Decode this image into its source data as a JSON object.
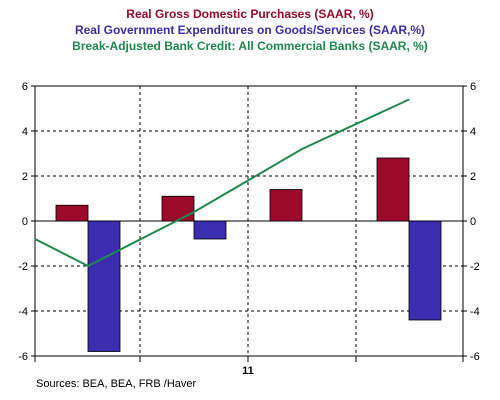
{
  "chart_data": {
    "type": "bar+line",
    "legend": [
      {
        "label": "Real Gross Domestic Purchases  (SAAR, %)",
        "color": "#9b0a2a"
      },
      {
        "label": "Real Government Expenditures on Goods/Services  (SAAR,%)",
        "color": "#3b2db0"
      },
      {
        "label": "Break-Adjusted Bank Credit: All Commercial Banks (SAAR, %)",
        "color": "#1e8a4f"
      }
    ],
    "x_tick_label": "11",
    "ylim": [
      -6,
      6
    ],
    "yticks": [
      -6,
      -4,
      -2,
      0,
      2,
      4,
      6
    ],
    "grid": true,
    "series": [
      {
        "type": "bar",
        "values": [
          0.7,
          1.1,
          1.4,
          2.8
        ]
      },
      {
        "type": "bar",
        "values": [
          -5.8,
          -0.8,
          0.0,
          -4.4
        ]
      },
      {
        "type": "line",
        "values": [
          -0.8,
          -2.0,
          0.4,
          3.2,
          5.4
        ]
      }
    ],
    "source": "Sources:  BEA, BEA, FRB /Haver"
  }
}
